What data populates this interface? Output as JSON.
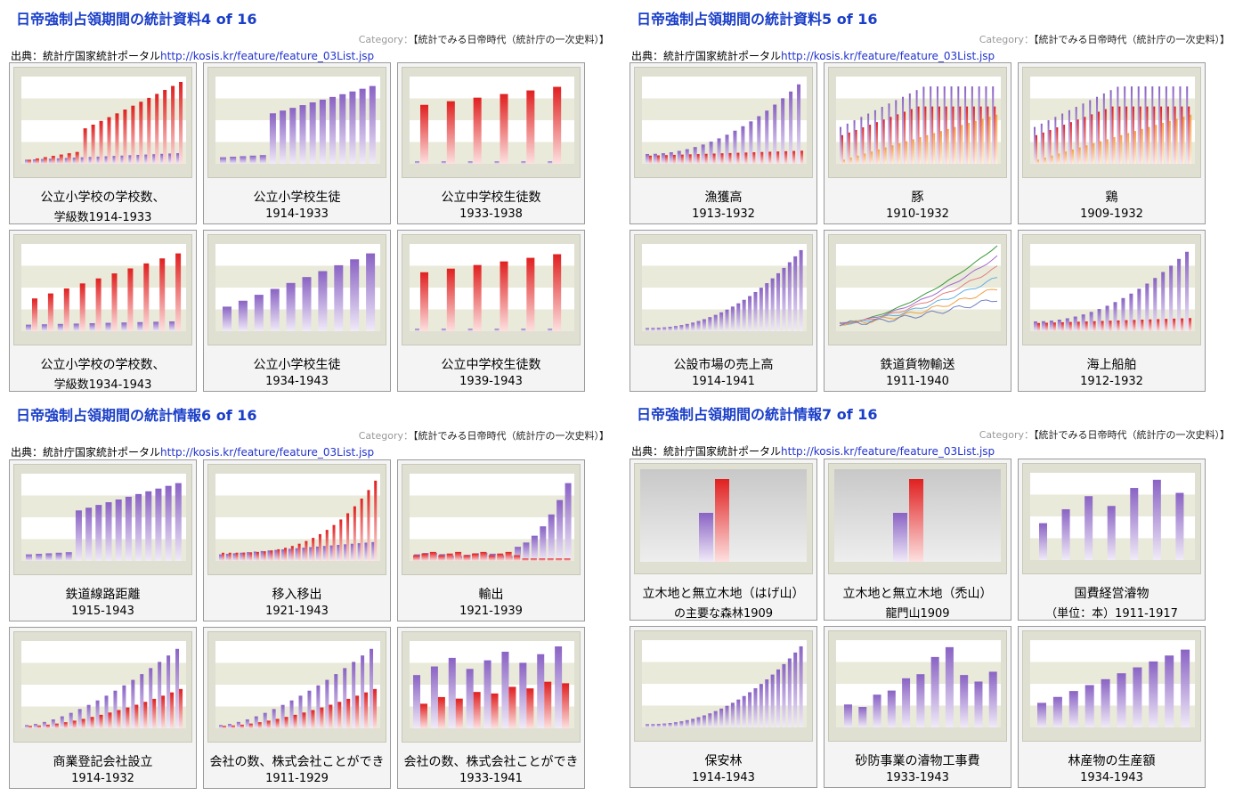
{
  "panels": [
    {
      "title": "日帝強制占領期間の統計資料4 of 16",
      "category_label": "Category：",
      "category_value": "【統計でみる日帝時代（統計庁の一次史料）】",
      "source_prefix": "出典：統計庁国家統計ポータル",
      "source_link": "http://kosis.kr/feature/feature_03List.jsp",
      "cards": [
        {
          "line1": "公立小学校の学校数、",
          "line2": "学級数1914-1933",
          "chart": "bar-red-up"
        },
        {
          "line1": "公立小学校生徒",
          "line2": "1914-1933",
          "chart": "bar-purple-step"
        },
        {
          "line1": "公立中学校生徒数",
          "line2": "1933-1938",
          "chart": "bar-red-sparse"
        },
        {
          "line1": "公立小学校の学校数、",
          "line2": "学級数1934-1943",
          "chart": "bar-red-pairs"
        },
        {
          "line1": "公立小学校生徒",
          "line2": "1934-1943",
          "chart": "bar-purple-up"
        },
        {
          "line1": "公立中学校生徒数",
          "line2": "1939-1943",
          "chart": "bar-red-sparse"
        }
      ]
    },
    {
      "title": "日帝強制占領期間の統計資料5 of 16",
      "category_label": "Category：",
      "category_value": "【統計でみる日帝時代（統計庁の一次史料）】",
      "source_prefix": "出典：統計庁国家統計ポータル",
      "source_link": "http://kosis.kr/feature/feature_03List.jsp",
      "cards": [
        {
          "line1": "漁獲高",
          "line2": "1913-1932",
          "chart": "bar-mix"
        },
        {
          "line1": "豚",
          "line2": "1910-1932",
          "chart": "bar-tri"
        },
        {
          "line1": "鶏",
          "line2": "1909-1932",
          "chart": "bar-tri"
        },
        {
          "line1": "公設市場の売上高",
          "line2": "1914-1941",
          "chart": "bar-purple-exp"
        },
        {
          "line1": "鉄道貨物輸送",
          "line2": "1911-1940",
          "chart": "lines"
        },
        {
          "line1": "海上船舶",
          "line2": "1912-1932",
          "chart": "bar-mix"
        }
      ]
    },
    {
      "title": "日帝強制占領期間の統計情報6 of 16",
      "category_label": "Category：",
      "category_value": "【統計でみる日帝時代（統計庁の一次史料）】",
      "source_prefix": "出典：統計庁国家統計ポータル",
      "source_link": "http://kosis.kr/feature/feature_03List.jsp",
      "cards": [
        {
          "line1": "鉄道線路距離",
          "line2": "1915-1943",
          "chart": "bar-purple-step"
        },
        {
          "line1": "移入移出",
          "line2": "1921-1943",
          "chart": "bar-red-exp"
        },
        {
          "line1": "輸出",
          "line2": "1921-1939",
          "chart": "bar-export"
        },
        {
          "line1": "商業登記会社設立",
          "line2": "1914-1932",
          "chart": "bar-pair-exp"
        },
        {
          "line1": "会社の数、株式会社ことができ",
          "line2": "1911-1929",
          "chart": "bar-pair-exp"
        },
        {
          "line1": "会社の数、株式会社ことができ",
          "line2": "1933-1941",
          "chart": "bar-pair-high"
        }
      ]
    },
    {
      "title": "日帝強制占領期間の統計情報7 of 16",
      "category_label": "Category：",
      "category_value": "【統計でみる日帝時代（統計庁の一次史料）】",
      "source_prefix": "出典：統計庁国家統計ポータル",
      "source_link": "http://kosis.kr/feature/feature_03List.jsp",
      "cards": [
        {
          "line1": "立木地と無立木地（はげ山）",
          "line2": "の主要な森林1909",
          "chart": "bar-3d"
        },
        {
          "line1": "立木地と無立木地（禿山）",
          "line2": "龍門山1909",
          "chart": "bar-3d"
        },
        {
          "line1": "国費経営濬物",
          "line2": "（単位：本）1911-1917",
          "chart": "bar-purple-7"
        },
        {
          "line1": "保安林",
          "line2": "1914-1943",
          "chart": "bar-purple-exp"
        },
        {
          "line1": "砂防事業の濬物工事費",
          "line2": "1933-1943",
          "chart": "bar-purple-hump"
        },
        {
          "line1": "林産物の生産額",
          "line2": "1934-1943",
          "chart": "bar-purple-up"
        }
      ]
    }
  ]
}
